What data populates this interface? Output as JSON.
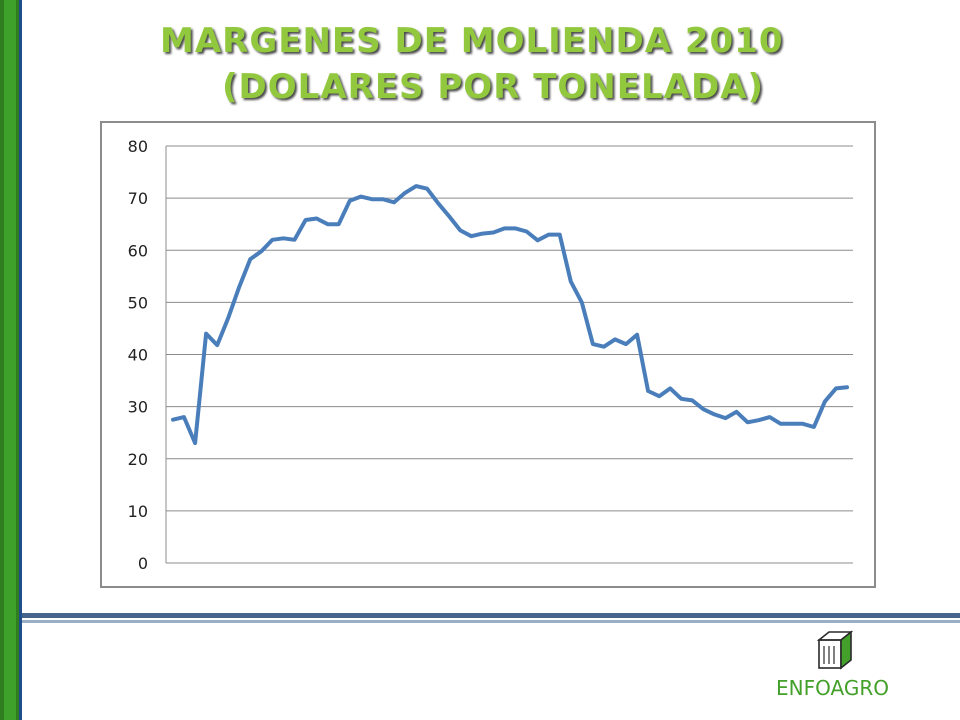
{
  "slide": {
    "title_line1": "MARGENES DE MOLIENDA 2010",
    "title_line2": "(DOLARES POR TONELADA)",
    "logo_text": "ENFOAGRO"
  },
  "colors": {
    "title": "#92c83e",
    "line": "#4a7ebb",
    "left_bar": "#2e7d1e",
    "logo": "#43a02a"
  },
  "chart_data": {
    "type": "line",
    "title": "",
    "xlabel": "",
    "ylabel": "",
    "ylim": [
      0,
      80
    ],
    "yticks": [
      0,
      10,
      20,
      30,
      40,
      50,
      60,
      70,
      80
    ],
    "grid": true,
    "legend": "none",
    "series": [
      {
        "values": [
          27.5,
          28,
          23,
          44,
          41.8,
          47,
          53,
          58.3,
          59.8,
          62,
          62.3,
          62,
          65.8,
          66.1,
          65,
          65,
          69.5,
          70.3,
          69.8,
          69.8,
          69.2,
          71,
          72.3,
          71.8,
          69,
          66.5,
          63.8,
          62.7,
          63.2,
          63.4,
          64.2,
          64.2,
          63.6,
          61.9,
          63,
          63,
          54,
          50,
          42,
          41.5,
          42.9,
          42,
          43.8,
          33,
          32,
          33.5,
          31.5,
          31.2,
          29.5,
          28.5,
          27.8,
          29,
          27,
          27.4,
          28,
          26.7,
          26.7,
          26.7,
          26.1,
          31,
          33.5,
          33.7
        ]
      }
    ]
  }
}
